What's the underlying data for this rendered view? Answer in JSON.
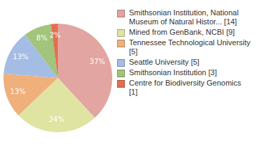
{
  "chart_data": {
    "type": "pie",
    "categories": [
      "Smithsonian Institution, National Museum of Natural Histor... [14]",
      "Mined from GenBank, NCBI [9]",
      "Tennessee Technological University [5]",
      "Seattle University [5]",
      "Smithsonian Institution [3]",
      "Centre for Biodiversity Genomics [1]"
    ],
    "values": [
      37,
      24,
      13,
      13,
      8,
      2
    ],
    "value_labels": [
      "37%",
      "24%",
      "13%",
      "13%",
      "8%",
      "2%"
    ],
    "colors": [
      "#e3a5a2",
      "#dfe4a2",
      "#f0b07c",
      "#a4bde4",
      "#a2c47c",
      "#e2704f"
    ],
    "data_labels": true,
    "legend": "right"
  }
}
